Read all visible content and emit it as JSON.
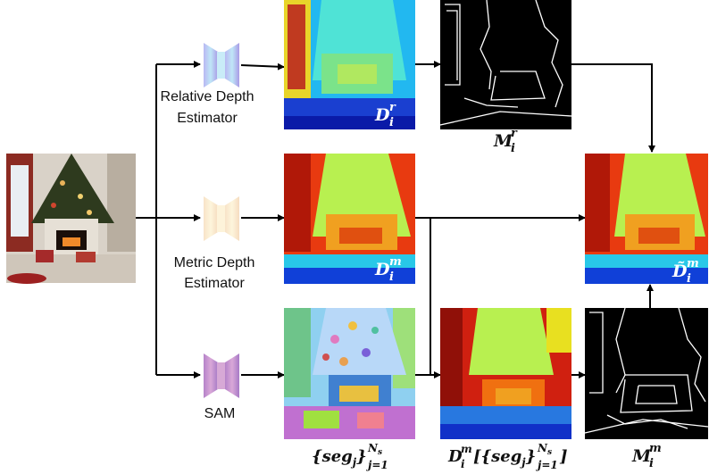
{
  "estimators": [
    {
      "lines": [
        "Relative Depth",
        "Estimator"
      ]
    },
    {
      "lines": [
        "Metric Depth",
        "Estimator"
      ]
    },
    {
      "lines": [
        "SAM"
      ]
    }
  ],
  "labels": {
    "relative_depth": {
      "base": "D",
      "sub": "i",
      "sup": "r"
    },
    "relative_mask": {
      "base": "M",
      "sub": "i",
      "sup": "r"
    },
    "metric_depth": {
      "base": "D",
      "sub": "i",
      "sup": "m"
    },
    "refined_depth": {
      "base": "D̃",
      "sub": "i",
      "sup": "m"
    },
    "segments": {
      "open": "{",
      "base": "seg",
      "inner_sub": "j",
      "close": "}",
      "sub": "j=1",
      "sup": "N",
      "sup_sub": "s"
    },
    "masked_depth": {
      "base": "D",
      "sub": "i",
      "sup": "m",
      "open_bracket": "[",
      "open": "{",
      "seg": "seg",
      "inner_sub": "j",
      "close": "}",
      "range_sub": "j=1",
      "range_sup": "N",
      "range_sup_sub": "s",
      "close_bracket": "]"
    },
    "metric_mask": {
      "base": "M",
      "sub": "i",
      "sup": "m"
    }
  }
}
